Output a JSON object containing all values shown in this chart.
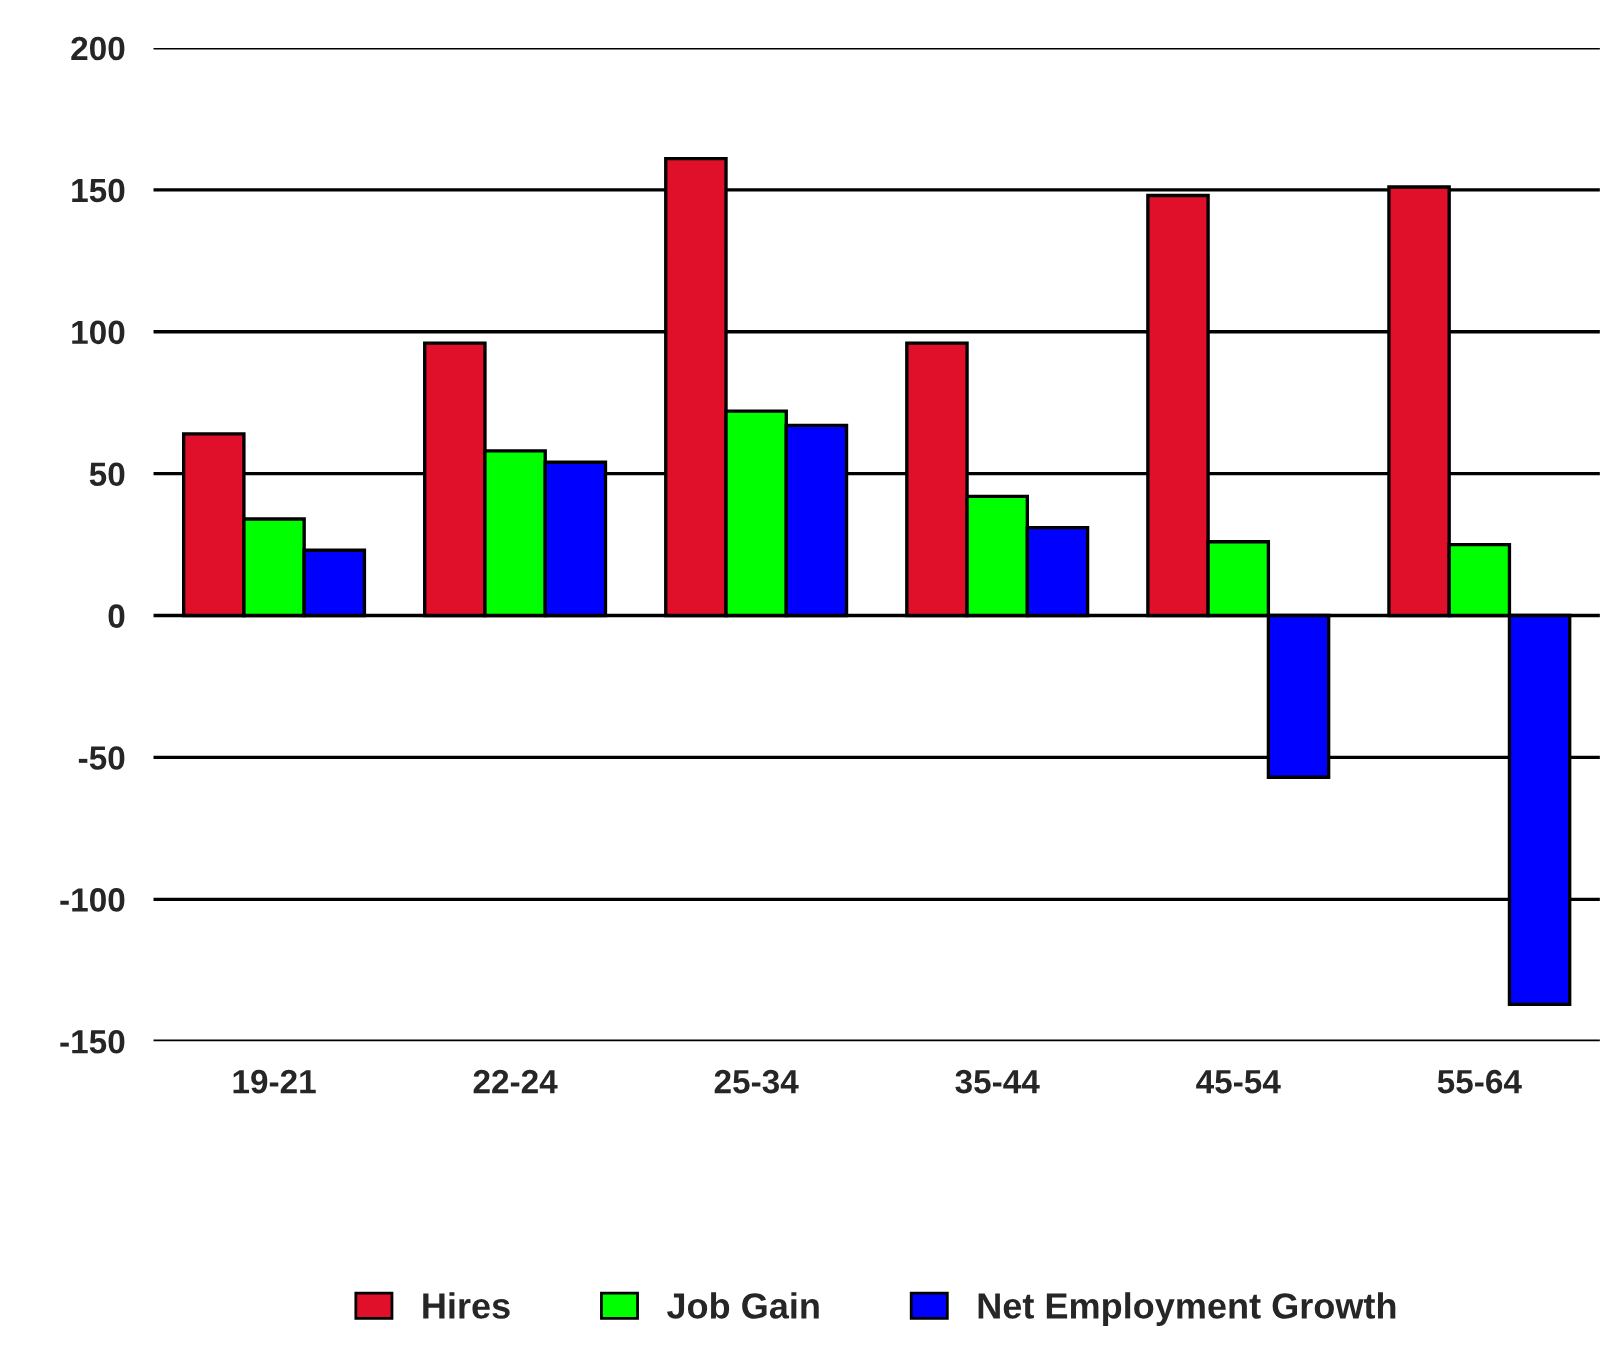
{
  "chart_data": {
    "type": "bar",
    "categories": [
      "19-21",
      "22-24",
      "25-34",
      "35-44",
      "45-54",
      "55-64"
    ],
    "series": [
      {
        "name": "Hires",
        "color": "#e0102a",
        "values": [
          64,
          96,
          161,
          96,
          148,
          151
        ]
      },
      {
        "name": "Job Gain",
        "color": "#00ff00",
        "values": [
          34,
          58,
          72,
          42,
          26,
          25
        ]
      },
      {
        "name": "Net Employment Growth",
        "color": "#0000ff",
        "values": [
          23,
          54,
          67,
          31,
          -57,
          -137
        ]
      }
    ],
    "ylim": [
      -150,
      200
    ],
    "yticks": [
      -150,
      -100,
      -50,
      0,
      50,
      100,
      150,
      200
    ],
    "grid": "y",
    "legend": "bottom"
  }
}
